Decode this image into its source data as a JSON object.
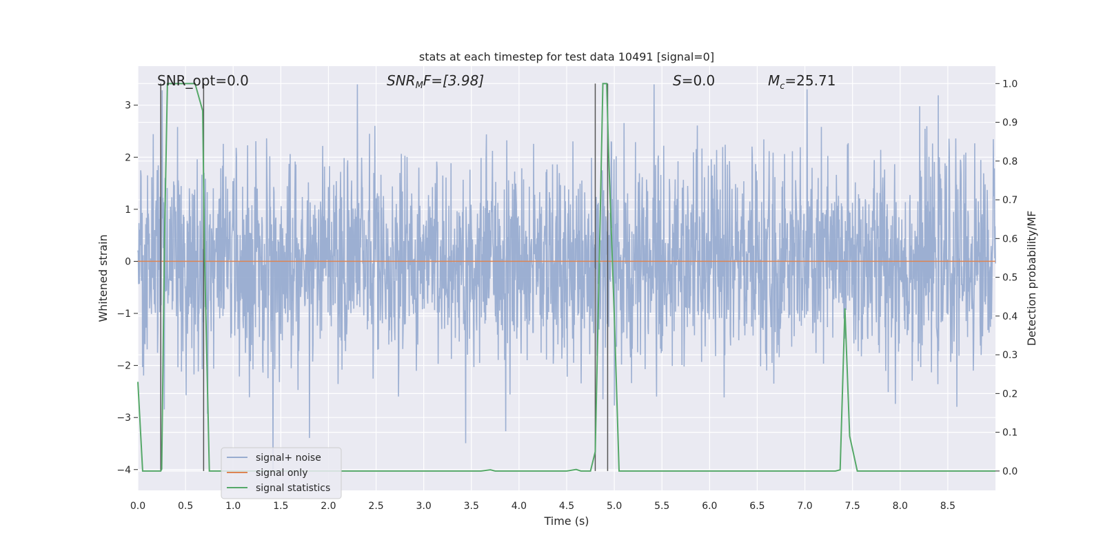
{
  "chart_data": {
    "type": "line",
    "title": "stats at each timestep for test data 10491 [signal=0]",
    "xlabel": "Time (s)",
    "ylabel_left": "Whitened strain",
    "ylabel_right": "Detection probability/MF",
    "xlim": [
      0.0,
      9.0
    ],
    "ylim_left": [
      -4.4,
      3.75
    ],
    "ylim_right": [
      -0.05,
      1.045
    ],
    "xticks": [
      "0.0",
      "0.5",
      "1.0",
      "1.5",
      "2.0",
      "2.5",
      "3.0",
      "3.5",
      "4.0",
      "4.5",
      "5.0",
      "5.5",
      "6.0",
      "6.5",
      "7.0",
      "7.5",
      "8.0",
      "8.5"
    ],
    "yticks_left": [
      "3",
      "2",
      "1",
      "0",
      "−1",
      "−2",
      "−3",
      "−4"
    ],
    "yticks_right": [
      "1.0",
      "0.9",
      "0.8",
      "0.7",
      "0.6",
      "0.5",
      "0.4",
      "0.3",
      "0.2",
      "0.1",
      "0.0"
    ],
    "annotations": {
      "snr_opt": "SNR_opt=0.0",
      "snr_mf_prefix": "SNR",
      "snr_mf_sub": "M",
      "snr_mf_suffix": "F=[3.98]",
      "s_label": "S",
      "s_value": "=0.0",
      "mc_label": "M",
      "mc_sub": "c",
      "mc_value": "=25.71"
    },
    "series": [
      {
        "name": "signal+ noise",
        "color": "#98acd0",
        "description": "whitened noise strain, roughly symmetric about 0 with peaks up to about 3.4 and down to about -4.0"
      },
      {
        "name": "signal only",
        "color": "#dd8452",
        "values_constant": 0
      },
      {
        "name": "signal statistics",
        "color": "#55a868",
        "axis": "right",
        "x": [
          0.0,
          0.05,
          0.24,
          0.25,
          0.28,
          0.31,
          0.6,
          0.68,
          0.7,
          0.75,
          0.8,
          3.6,
          3.7,
          3.75,
          3.8,
          4.5,
          4.6,
          4.65,
          4.75,
          4.8,
          4.85,
          4.88,
          4.92,
          4.94,
          5.0,
          5.05,
          5.1,
          7.32,
          7.37,
          7.42,
          7.47,
          7.55,
          9.0
        ],
        "values": [
          0.23,
          0.0,
          0.0,
          0.005,
          0.6,
          1.0,
          1.0,
          0.93,
          0.55,
          0.0,
          0.0,
          0.0,
          0.003,
          0.0,
          0.0,
          0.0,
          0.004,
          0.0,
          0.0,
          0.05,
          0.63,
          1.0,
          1.0,
          0.82,
          0.4,
          0.0,
          0.0,
          0.0,
          0.003,
          0.42,
          0.09,
          0.0,
          0.0
        ]
      }
    ],
    "vertical_lines": [
      0.24,
      0.69,
      4.8,
      4.93
    ],
    "legend": {
      "position": "lower-left",
      "entries": [
        {
          "label": "signal+ noise",
          "color": "#98acd0"
        },
        {
          "label": "signal only",
          "color": "#dd8452"
        },
        {
          "label": "signal statistics",
          "color": "#55a868"
        }
      ]
    }
  }
}
